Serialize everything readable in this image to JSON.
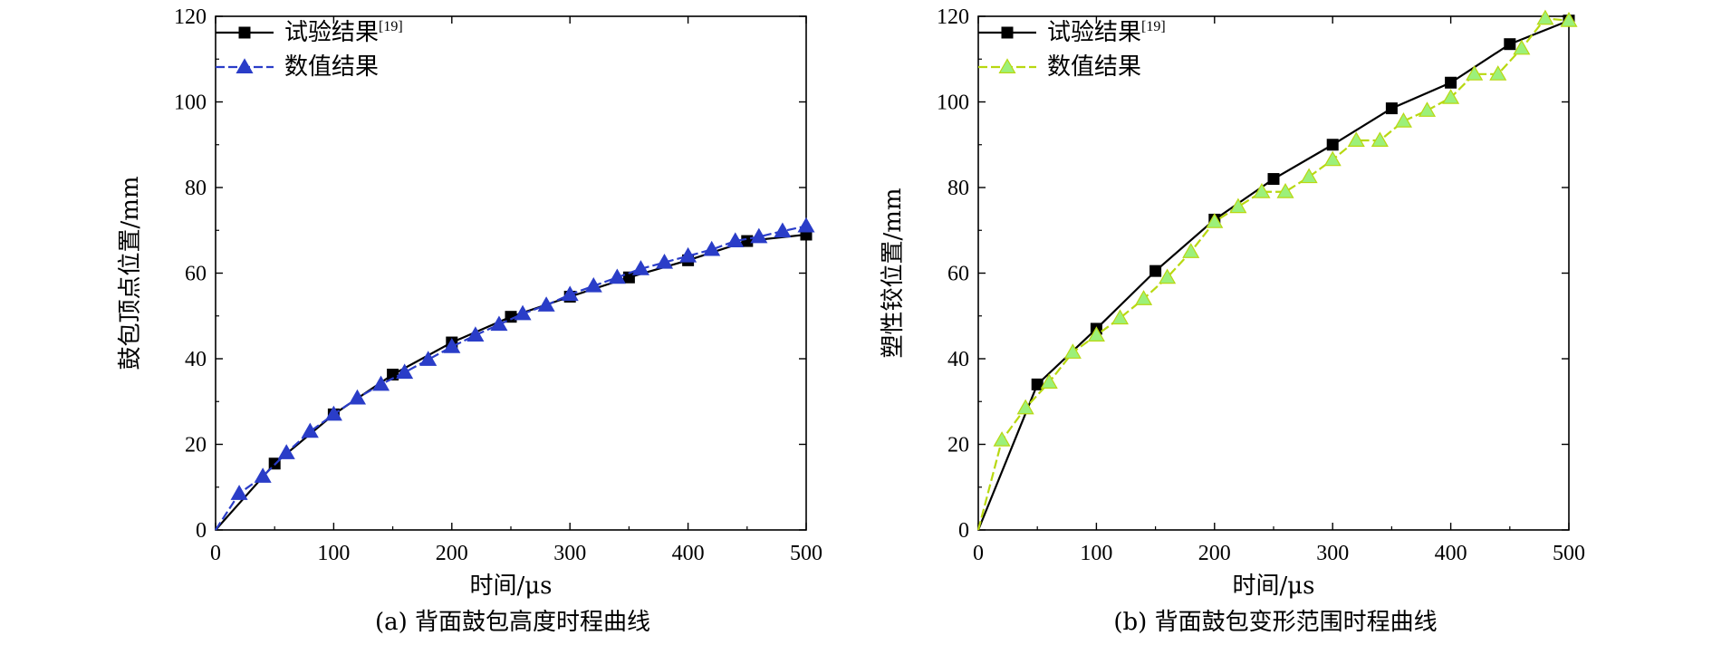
{
  "chart_data": [
    {
      "type": "line",
      "caption": "(a) 背面鼓包高度时程曲线",
      "xlabel": "时间/μs",
      "ylabel": "鼓包顶点位置/mm",
      "xlim": [
        0,
        500
      ],
      "ylim": [
        0,
        120
      ],
      "xticks": [
        0,
        100,
        200,
        300,
        400,
        500
      ],
      "yticks": [
        0,
        20,
        40,
        60,
        80,
        100,
        120
      ],
      "grid": false,
      "legend": "top-left",
      "series": [
        {
          "name": "试验结果",
          "name_sup": "[19]",
          "color": "#000000",
          "marker": "square",
          "x": [
            0,
            50,
            100,
            150,
            200,
            250,
            300,
            350,
            400,
            450,
            500
          ],
          "y": [
            0,
            15.5,
            27,
            36.3,
            43.8,
            49.8,
            54.5,
            59,
            63,
            67.5,
            69
          ]
        },
        {
          "name": "数值结果",
          "color": "#2a3dc8",
          "marker": "triangle",
          "x": [
            0,
            20,
            40,
            60,
            80,
            100,
            120,
            140,
            160,
            180,
            200,
            220,
            240,
            260,
            280,
            300,
            320,
            340,
            360,
            380,
            400,
            420,
            440,
            460,
            480,
            500
          ],
          "y": [
            0,
            8.5,
            12.5,
            18,
            23,
            27,
            30.8,
            34,
            36.8,
            39.8,
            42.8,
            45.5,
            48,
            50.5,
            52.5,
            55,
            57,
            59,
            61,
            62.5,
            64,
            65.5,
            67.5,
            68.5,
            69.8,
            71
          ]
        }
      ]
    },
    {
      "type": "line",
      "caption": "(b) 背面鼓包变形范围时程曲线",
      "xlabel": "时间/μs",
      "ylabel": "塑性铰位置/mm",
      "xlim": [
        0,
        500
      ],
      "ylim": [
        0,
        120
      ],
      "xticks": [
        0,
        100,
        200,
        300,
        400,
        500
      ],
      "yticks": [
        0,
        20,
        40,
        60,
        80,
        100,
        120
      ],
      "grid": false,
      "legend": "top-left",
      "series": [
        {
          "name": "试验结果",
          "name_sup": "[19]",
          "color": "#000000",
          "marker": "square",
          "x": [
            0,
            50,
            100,
            150,
            200,
            250,
            300,
            350,
            400,
            450,
            500
          ],
          "y": [
            0,
            34,
            47,
            60.5,
            72.5,
            82,
            90,
            98.5,
            104.5,
            113.5,
            119
          ]
        },
        {
          "name": "数值结果",
          "color": "#b8d810",
          "fill": "#9cf07a",
          "marker": "triangle",
          "x": [
            0,
            20,
            40,
            60,
            80,
            100,
            120,
            140,
            160,
            180,
            200,
            220,
            240,
            260,
            280,
            300,
            320,
            340,
            360,
            380,
            400,
            420,
            440,
            460,
            480,
            500
          ],
          "y": [
            0,
            21,
            28.5,
            34.5,
            41.5,
            45.5,
            49.5,
            54,
            59,
            65,
            72,
            75.5,
            79,
            79,
            82.5,
            86.5,
            91,
            91,
            95.5,
            98,
            101,
            106.5,
            106.5,
            112.5,
            119.5,
            119
          ]
        }
      ]
    }
  ]
}
